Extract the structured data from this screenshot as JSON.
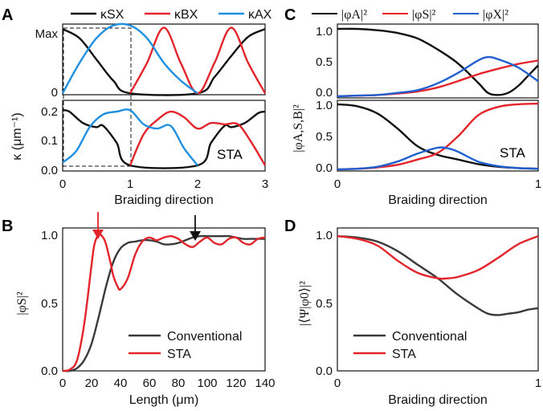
{
  "colors": {
    "black": "#111111",
    "red": "#e3242b",
    "blue": "#1f8fe0",
    "line_black": "#3a3a3a"
  },
  "panels": {
    "A": {
      "label": "A",
      "legend": [
        "κSX",
        "κBX",
        "κAX"
      ],
      "ylabel": "κ (μm⁻¹)",
      "xlabel": "Braiding direction",
      "top_ticks_y": [
        "Max",
        "0"
      ],
      "bottom_ticks_y": [
        "0.0",
        "0.1",
        "0.2"
      ],
      "ticks_x": [
        "0",
        "1",
        "2",
        "3"
      ],
      "annotation": "STA"
    },
    "B": {
      "label": "B",
      "ylabel": "|φS|²",
      "xlabel": "Length (μm)",
      "ticks_x": [
        "0",
        "20",
        "40",
        "60",
        "80",
        "100",
        "120",
        "140"
      ],
      "ticks_y": [
        "0.0",
        "0.5",
        "1.0"
      ],
      "legend": [
        "Conventional",
        "STA"
      ]
    },
    "C": {
      "label": "C",
      "legend": [
        "|φA|²",
        "|φS|²",
        "|φX|²"
      ],
      "ylabel": "|φA,S,B|²",
      "xlabel": "Braiding direction",
      "top_ticks_y": [
        "0.0",
        "0.5",
        "1.0"
      ],
      "bottom_ticks_y": [
        "0.0",
        "0.5",
        "1.0"
      ],
      "ticks_x": [
        "0",
        "1"
      ],
      "annotation": "STA"
    },
    "D": {
      "label": "D",
      "ylabel": "|⟨Ψ|φ0⟩|²",
      "xlabel": "Braiding direction",
      "ticks_x": [
        "0",
        "1"
      ],
      "ticks_y": [
        "0.0",
        "0.5",
        "1.0"
      ],
      "legend": [
        "Conventional",
        "STA"
      ]
    }
  },
  "chart_data": [
    {
      "type": "line",
      "panel": "A-top",
      "xlim": [
        0,
        3
      ],
      "ylim": [
        0,
        1
      ],
      "series": [
        {
          "name": "κSX",
          "x": [
            0,
            0.25,
            0.5,
            0.75,
            1,
            2,
            2.25,
            2.5,
            2.75,
            3
          ],
          "y": [
            0.93,
            0.8,
            0.5,
            0.2,
            0.02,
            0.02,
            0.25,
            0.55,
            0.82,
            0.93
          ]
        },
        {
          "name": "κBX",
          "x": [
            1,
            1.25,
            1.5,
            1.75,
            2,
            2.25,
            2.5,
            2.75,
            3
          ],
          "y": [
            0.02,
            0.45,
            0.95,
            0.45,
            0.02,
            0.45,
            0.95,
            0.45,
            0.02
          ]
        },
        {
          "name": "κAX",
          "x": [
            0,
            0.25,
            0.5,
            0.75,
            1,
            1.25,
            1.5,
            1.75,
            2
          ],
          "y": [
            0.02,
            0.45,
            0.8,
            0.98,
            0.98,
            0.8,
            0.45,
            0.2,
            0.02
          ]
        }
      ]
    },
    {
      "type": "line",
      "panel": "A-bottom",
      "xlim": [
        0,
        3
      ],
      "ylim": [
        0,
        0.25
      ],
      "series": [
        {
          "name": "κSX",
          "x": [
            0,
            0.1,
            0.3,
            0.5,
            0.6,
            0.8,
            1,
            2,
            2.2,
            2.4,
            2.5,
            2.7,
            2.9,
            3
          ],
          "y": [
            0.215,
            0.21,
            0.17,
            0.155,
            0.16,
            0.1,
            0.02,
            0.02,
            0.1,
            0.16,
            0.155,
            0.17,
            0.205,
            0.21
          ]
        },
        {
          "name": "κBX",
          "x": [
            1,
            1.2,
            1.4,
            1.6,
            1.8,
            2,
            2.2,
            2.4,
            2.6,
            2.8,
            3
          ],
          "y": [
            0.02,
            0.13,
            0.18,
            0.21,
            0.19,
            0.15,
            0.17,
            0.165,
            0.165,
            0.1,
            0.02
          ]
        },
        {
          "name": "κAX",
          "x": [
            0,
            0.2,
            0.4,
            0.6,
            0.8,
            1,
            1.2,
            1.4,
            1.6,
            1.8,
            2
          ],
          "y": [
            0.03,
            0.07,
            0.155,
            0.2,
            0.21,
            0.215,
            0.165,
            0.15,
            0.16,
            0.08,
            0.02
          ]
        }
      ]
    },
    {
      "type": "line",
      "panel": "B",
      "xlabel": "Length (μm)",
      "ylabel": "|φS|²",
      "xlim": [
        0,
        140
      ],
      "ylim": [
        0,
        1.05
      ],
      "series": [
        {
          "name": "Conventional",
          "x": [
            0,
            5,
            10,
            15,
            20,
            25,
            30,
            35,
            40,
            45,
            50,
            55,
            60,
            65,
            70,
            75,
            80,
            85,
            90,
            95,
            100,
            105,
            110,
            115,
            120,
            125,
            130,
            135,
            140
          ],
          "y": [
            0,
            0,
            0.02,
            0.08,
            0.2,
            0.4,
            0.62,
            0.8,
            0.9,
            0.94,
            0.95,
            0.96,
            0.96,
            0.95,
            0.93,
            0.93,
            0.94,
            0.96,
            0.98,
            0.99,
            0.99,
            0.99,
            0.99,
            0.99,
            0.98,
            0.97,
            0.97,
            0.97,
            0.97
          ]
        },
        {
          "name": "STA",
          "x": [
            0,
            5,
            10,
            15,
            20,
            22,
            25,
            28,
            30,
            33,
            35,
            38,
            40,
            45,
            50,
            55,
            60,
            65,
            70,
            75,
            80,
            85,
            90,
            95,
            100,
            105,
            110,
            115,
            120,
            125,
            130,
            135,
            140
          ],
          "y": [
            0,
            0.01,
            0.08,
            0.35,
            0.78,
            0.93,
            1.0,
            0.98,
            0.93,
            0.8,
            0.7,
            0.62,
            0.6,
            0.68,
            0.85,
            0.95,
            0.98,
            0.96,
            0.98,
            0.99,
            0.97,
            0.93,
            0.91,
            0.95,
            0.98,
            0.94,
            0.93,
            0.97,
            0.98,
            0.94,
            0.93,
            0.97,
            0.98
          ]
        }
      ],
      "annotations": [
        {
          "arrow": "red",
          "x": 25
        },
        {
          "arrow": "black",
          "x": 92
        }
      ]
    },
    {
      "type": "line",
      "panel": "C-top",
      "xlim": [
        0,
        1
      ],
      "ylim": [
        0,
        1.05
      ],
      "series": [
        {
          "name": "|φA|²",
          "x": [
            0,
            0.1,
            0.2,
            0.3,
            0.4,
            0.5,
            0.6,
            0.7,
            0.75,
            0.8,
            0.85,
            0.9,
            0.95,
            1
          ],
          "y": [
            0.98,
            0.98,
            0.96,
            0.92,
            0.84,
            0.68,
            0.48,
            0.2,
            0.05,
            0.02,
            0.05,
            0.15,
            0.3,
            0.45
          ]
        },
        {
          "name": "|φS|²",
          "x": [
            0,
            0.1,
            0.2,
            0.3,
            0.4,
            0.5,
            0.6,
            0.7,
            0.8,
            0.9,
            1
          ],
          "y": [
            0,
            0.01,
            0.02,
            0.04,
            0.07,
            0.13,
            0.22,
            0.32,
            0.4,
            0.47,
            0.52
          ]
        },
        {
          "name": "|φX|²",
          "x": [
            0,
            0.1,
            0.2,
            0.3,
            0.4,
            0.5,
            0.6,
            0.7,
            0.75,
            0.8,
            0.9,
            1
          ],
          "y": [
            0,
            0.01,
            0.02,
            0.05,
            0.09,
            0.19,
            0.34,
            0.52,
            0.57,
            0.54,
            0.42,
            0.22
          ]
        }
      ]
    },
    {
      "type": "line",
      "panel": "C-bottom",
      "xlim": [
        0,
        1
      ],
      "ylim": [
        0,
        1.05
      ],
      "series": [
        {
          "name": "|φA|²",
          "x": [
            0,
            0.1,
            0.2,
            0.3,
            0.4,
            0.5,
            0.6,
            0.7,
            0.8,
            0.9,
            1
          ],
          "y": [
            0.99,
            0.96,
            0.85,
            0.62,
            0.35,
            0.22,
            0.15,
            0.08,
            0.04,
            0.02,
            0.01
          ]
        },
        {
          "name": "|φS|²",
          "x": [
            0,
            0.1,
            0.2,
            0.3,
            0.4,
            0.5,
            0.6,
            0.7,
            0.8,
            0.9,
            1
          ],
          "y": [
            0.0,
            0.01,
            0.03,
            0.07,
            0.15,
            0.25,
            0.5,
            0.82,
            0.95,
            0.99,
            1.0
          ]
        },
        {
          "name": "|φX|²",
          "x": [
            0,
            0.1,
            0.2,
            0.3,
            0.4,
            0.5,
            0.55,
            0.6,
            0.7,
            0.8,
            0.9,
            1
          ],
          "y": [
            0,
            0.01,
            0.04,
            0.12,
            0.24,
            0.33,
            0.32,
            0.27,
            0.12,
            0.05,
            0.02,
            0.01
          ]
        }
      ]
    },
    {
      "type": "line",
      "panel": "D",
      "xlim": [
        0,
        1
      ],
      "ylim": [
        0,
        1.05
      ],
      "series": [
        {
          "name": "Conventional",
          "x": [
            0,
            0.1,
            0.2,
            0.3,
            0.4,
            0.5,
            0.6,
            0.7,
            0.75,
            0.8,
            0.85,
            0.9,
            0.95,
            1
          ],
          "y": [
            0.99,
            0.98,
            0.95,
            0.88,
            0.78,
            0.68,
            0.56,
            0.46,
            0.42,
            0.41,
            0.42,
            0.43,
            0.45,
            0.46
          ]
        },
        {
          "name": "STA",
          "x": [
            0,
            0.1,
            0.2,
            0.3,
            0.4,
            0.5,
            0.55,
            0.6,
            0.7,
            0.8,
            0.9,
            1
          ],
          "y": [
            0.99,
            0.97,
            0.92,
            0.81,
            0.72,
            0.68,
            0.68,
            0.69,
            0.74,
            0.83,
            0.93,
            0.99
          ]
        }
      ]
    }
  ]
}
